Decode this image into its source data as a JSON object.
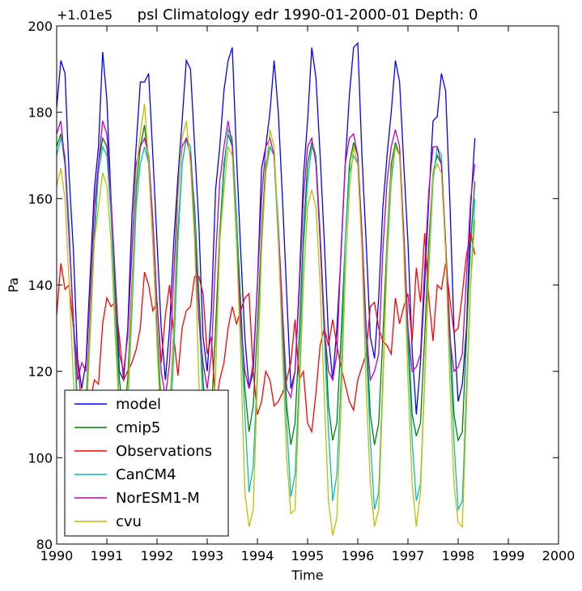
{
  "chart_data": {
    "type": "line",
    "title": "psl Climatology edr 1990-01-2000-01 Depth: 0",
    "xlabel": "Time",
    "ylabel": "Pa",
    "offset_label": "+1.01e5",
    "xlim": [
      1990,
      2000
    ],
    "ylim": [
      80,
      200
    ],
    "x_ticks": [
      "1990",
      "1991",
      "1992",
      "1993",
      "1994",
      "1995",
      "1996",
      "1997",
      "1998",
      "1999",
      "2000"
    ],
    "y_ticks": [
      "80",
      "100",
      "120",
      "140",
      "160",
      "180",
      "200"
    ],
    "grid": false,
    "legend_position": "lower-left",
    "x_start": 1990,
    "x_step": 0.08333,
    "series": [
      {
        "name": "model",
        "color": "#0000ff",
        "values": [
          181,
          192,
          189,
          165,
          148,
          123,
          116,
          122,
          142,
          162,
          172,
          194,
          183,
          160,
          140,
          120,
          118,
          130,
          156,
          172,
          187,
          187,
          189,
          170,
          150,
          130,
          118,
          130,
          150,
          165,
          178,
          192,
          190,
          172,
          154,
          128,
          120,
          134,
          162,
          172,
          185,
          192,
          195,
          170,
          148,
          128,
          116,
          120,
          140,
          167,
          172,
          180,
          192,
          180,
          160,
          138,
          116,
          120,
          140,
          165,
          178,
          195,
          188,
          170,
          150,
          128,
          118,
          130,
          147,
          168,
          184,
          195,
          196,
          170,
          150,
          128,
          123,
          137,
          158,
          170,
          180,
          192,
          187,
          168,
          150,
          125,
          110,
          122,
          140,
          160,
          178,
          179,
          189,
          185,
          160,
          130,
          113,
          117,
          130,
          158,
          174
        ]
      },
      {
        "name": "cmip5",
        "color": "#008000",
        "values": [
          172,
          175,
          168,
          152,
          132,
          112,
          106,
          112,
          132,
          152,
          168,
          174,
          172,
          158,
          138,
          118,
          110,
          118,
          140,
          162,
          172,
          177,
          168,
          150,
          130,
          112,
          104,
          110,
          130,
          152,
          168,
          174,
          170,
          158,
          138,
          118,
          104,
          110,
          130,
          152,
          168,
          175,
          172,
          156,
          136,
          116,
          106,
          112,
          130,
          152,
          168,
          172,
          170,
          152,
          132,
          112,
          103,
          108,
          128,
          152,
          168,
          173,
          170,
          152,
          132,
          112,
          104,
          108,
          128,
          150,
          168,
          173,
          170,
          152,
          130,
          110,
          103,
          108,
          128,
          150,
          168,
          173,
          170,
          152,
          130,
          110,
          105,
          108,
          128,
          150,
          166,
          170,
          168,
          150,
          130,
          110,
          104,
          106,
          128,
          150,
          164
        ]
      },
      {
        "name": "Observations",
        "color": "#ff0000",
        "values": [
          133,
          145,
          139,
          140,
          130,
          122,
          112,
          112,
          113,
          118,
          117,
          131,
          137,
          135,
          136,
          128,
          118,
          120,
          122,
          125,
          130,
          143,
          140,
          134,
          136,
          122,
          133,
          140,
          128,
          119,
          130,
          134,
          135,
          142,
          142,
          138,
          124,
          128,
          112,
          118,
          122,
          130,
          135,
          131,
          134,
          137,
          138,
          120,
          110,
          113,
          120,
          118,
          112,
          113,
          115,
          118,
          122,
          132,
          118,
          120,
          108,
          106,
          115,
          126,
          130,
          126,
          132,
          126,
          121,
          117,
          113,
          111,
          118,
          121,
          124,
          135,
          136,
          130,
          127,
          126,
          124,
          137,
          131,
          135,
          138,
          127,
          144,
          136,
          152,
          137,
          127,
          140,
          139,
          145,
          137,
          129,
          130,
          138,
          147,
          152,
          147
        ]
      },
      {
        "name": "CanCM4",
        "color": "#00bfbf",
        "values": [
          170,
          174,
          170,
          154,
          130,
          110,
          100,
          108,
          128,
          150,
          166,
          172,
          170,
          156,
          134,
          112,
          104,
          112,
          134,
          158,
          168,
          172,
          168,
          150,
          128,
          108,
          96,
          104,
          124,
          150,
          168,
          174,
          172,
          156,
          134,
          112,
          94,
          100,
          120,
          150,
          166,
          176,
          174,
          156,
          130,
          110,
          92,
          98,
          120,
          150,
          166,
          172,
          170,
          150,
          128,
          108,
          91,
          96,
          118,
          148,
          164,
          172,
          170,
          150,
          128,
          106,
          90,
          96,
          118,
          150,
          166,
          170,
          168,
          150,
          126,
          104,
          88,
          92,
          118,
          146,
          164,
          172,
          170,
          150,
          126,
          104,
          90,
          94,
          118,
          144,
          164,
          172,
          170,
          148,
          126,
          104,
          88,
          90,
          116,
          140,
          160
        ]
      },
      {
        "name": "NorESM1-M",
        "color": "#bf00bf",
        "values": [
          175,
          178,
          168,
          150,
          132,
          118,
          122,
          120,
          138,
          158,
          168,
          178,
          175,
          160,
          142,
          124,
          120,
          128,
          148,
          168,
          172,
          174,
          170,
          155,
          136,
          120,
          114,
          122,
          142,
          162,
          172,
          174,
          170,
          152,
          132,
          122,
          116,
          124,
          146,
          164,
          172,
          178,
          172,
          150,
          132,
          120,
          116,
          122,
          140,
          160,
          172,
          174,
          170,
          154,
          134,
          116,
          114,
          120,
          138,
          160,
          172,
          174,
          168,
          150,
          130,
          120,
          118,
          124,
          148,
          168,
          174,
          175,
          170,
          152,
          130,
          118,
          120,
          124,
          148,
          164,
          172,
          176,
          172,
          152,
          130,
          120,
          121,
          124,
          144,
          162,
          172,
          172,
          168,
          150,
          128,
          120,
          121,
          124,
          142,
          160,
          168
        ]
      },
      {
        "name": "cvu",
        "color": "#bfbf00",
        "values": [
          163,
          167,
          160,
          140,
          118,
          104,
          102,
          108,
          130,
          150,
          158,
          166,
          163,
          150,
          128,
          110,
          104,
          114,
          138,
          166,
          175,
          182,
          168,
          150,
          126,
          106,
          100,
          108,
          130,
          160,
          174,
          178,
          168,
          150,
          118,
          96,
          92,
          96,
          120,
          150,
          162,
          172,
          170,
          150,
          124,
          92,
          84,
          88,
          118,
          148,
          166,
          176,
          172,
          152,
          124,
          100,
          87,
          88,
          114,
          140,
          158,
          162,
          158,
          140,
          114,
          90,
          82,
          86,
          112,
          142,
          162,
          172,
          168,
          148,
          116,
          94,
          84,
          88,
          116,
          148,
          166,
          172,
          170,
          148,
          118,
          94,
          84,
          92,
          118,
          146,
          166,
          168,
          166,
          148,
          118,
          94,
          85,
          84,
          112,
          140,
          155
        ]
      }
    ]
  }
}
